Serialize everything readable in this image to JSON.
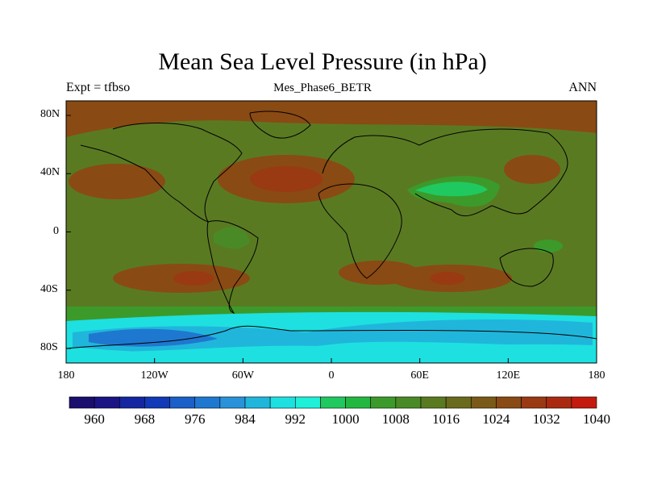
{
  "title": "Mean Sea Level Pressure (in hPa)",
  "left_string": "Expt = tfbso",
  "center_string": "Mes_Phase6_BETR",
  "right_string": "ANN",
  "lat_labels": [
    "80N",
    "40N",
    "0",
    "40S",
    "80S"
  ],
  "lon_labels": [
    "180",
    "120W",
    "60W",
    "0",
    "60E",
    "120E",
    "180"
  ],
  "colorbar": {
    "labels": [
      "960",
      "968",
      "976",
      "984",
      "992",
      "1000",
      "1008",
      "1016",
      "1024",
      "1032",
      "1040"
    ],
    "colors": [
      "#1a0f6e",
      "#1b1484",
      "#1626a0",
      "#1139b8",
      "#1b5fc8",
      "#1e78d0",
      "#2a92d8",
      "#20b6dc",
      "#1ee0e0",
      "#1ff0d8",
      "#20c860",
      "#22b840",
      "#3c9a2a",
      "#4a8a26",
      "#5a7a22",
      "#6a6a1c",
      "#7a5a18",
      "#8a4a14",
      "#9a3a12",
      "#aa2a10",
      "#c41a0e"
    ]
  },
  "map_colors": {
    "high": "#8a4a14",
    "very_high": "#9a3a12",
    "mid": "#5a7a22",
    "mid_low": "#4a8a26",
    "green": "#3c9a2a",
    "bright_green": "#20c860",
    "aqua": "#1ee0e0",
    "cyan": "#20b6dc",
    "blue": "#1e78d0",
    "deep_blue": "#1b5fc8"
  }
}
